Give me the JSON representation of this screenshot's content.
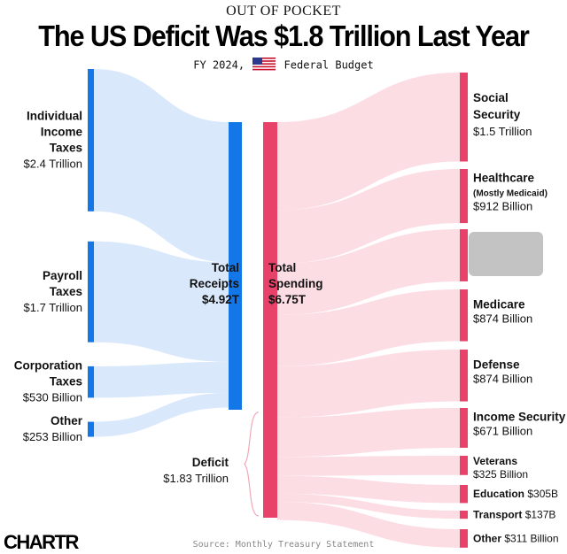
{
  "kicker": "OUT OF POCKET",
  "title": "The US Deficit Was $1.8 Trillion Last Year",
  "subtitle_left": "FY 2024,",
  "subtitle_right": "Federal Budget",
  "flag_icon": "us-flag-icon",
  "source": "Source: Monthly Treasury Statement",
  "logo": "CHARTR",
  "colors": {
    "receipts": "#1477e8",
    "receipts_flow": "#d9e8fb",
    "spending": "#e8416a",
    "spending_flow": "#fcdde4",
    "redacted": "#bdbdbd"
  },
  "chart_data": {
    "type": "sankey",
    "units": "USD",
    "receipts": [
      {
        "name": [
          "Individual",
          "Income",
          "Taxes"
        ],
        "value_label": "$2.4 Trillion",
        "value": 2.4
      },
      {
        "name": [
          "Payroll",
          "Taxes"
        ],
        "value_label": "$1.7 Trillion",
        "value": 1.7
      },
      {
        "name": [
          "Corporation",
          "Taxes"
        ],
        "value_label": "$530 Billion",
        "value": 0.53
      },
      {
        "name": [
          "Other"
        ],
        "value_label": "$253 Billion",
        "value": 0.253
      }
    ],
    "total_receipts": {
      "label": [
        "Total",
        "Receipts"
      ],
      "value_label": "$4.92T",
      "value": 4.92
    },
    "deficit": {
      "label": "Deficit",
      "value_label": "$1.83 Trillion",
      "value": 1.83
    },
    "total_spending": {
      "label": [
        "Total",
        "Spending"
      ],
      "value_label": "$6.75T",
      "value": 6.75
    },
    "spending": [
      {
        "name": [
          "Social",
          "Security"
        ],
        "value_label": "$1.5 Trillion",
        "value": 1.5,
        "style": "large"
      },
      {
        "name": [
          "Healthcare"
        ],
        "note": "(Mostly Medicaid)",
        "value_label": "$912 Billion",
        "value": 0.912,
        "style": "medium"
      },
      {
        "name": [],
        "value_label": "",
        "value": 0.88,
        "style": "redacted"
      },
      {
        "name": [
          "Medicare"
        ],
        "value_label": "$874 Billion",
        "value": 0.874,
        "style": "medium"
      },
      {
        "name": [
          "Defense"
        ],
        "value_label": "$874 Billion",
        "value": 0.874,
        "style": "medium"
      },
      {
        "name": [
          "Income Security"
        ],
        "value_label": "$671 Billion",
        "value": 0.671,
        "style": "medium"
      },
      {
        "name": [
          "Veterans"
        ],
        "value_label": "$325 Billion",
        "value": 0.325,
        "style": "small"
      },
      {
        "name": [
          "Education"
        ],
        "value_label": "$305B",
        "value": 0.305,
        "style": "inline"
      },
      {
        "name": [
          "Transport"
        ],
        "value_label": "$137B",
        "value": 0.137,
        "style": "inline"
      },
      {
        "name": [
          "Other"
        ],
        "value_label": "$311 Billion",
        "value": 0.311,
        "style": "inline"
      }
    ]
  }
}
